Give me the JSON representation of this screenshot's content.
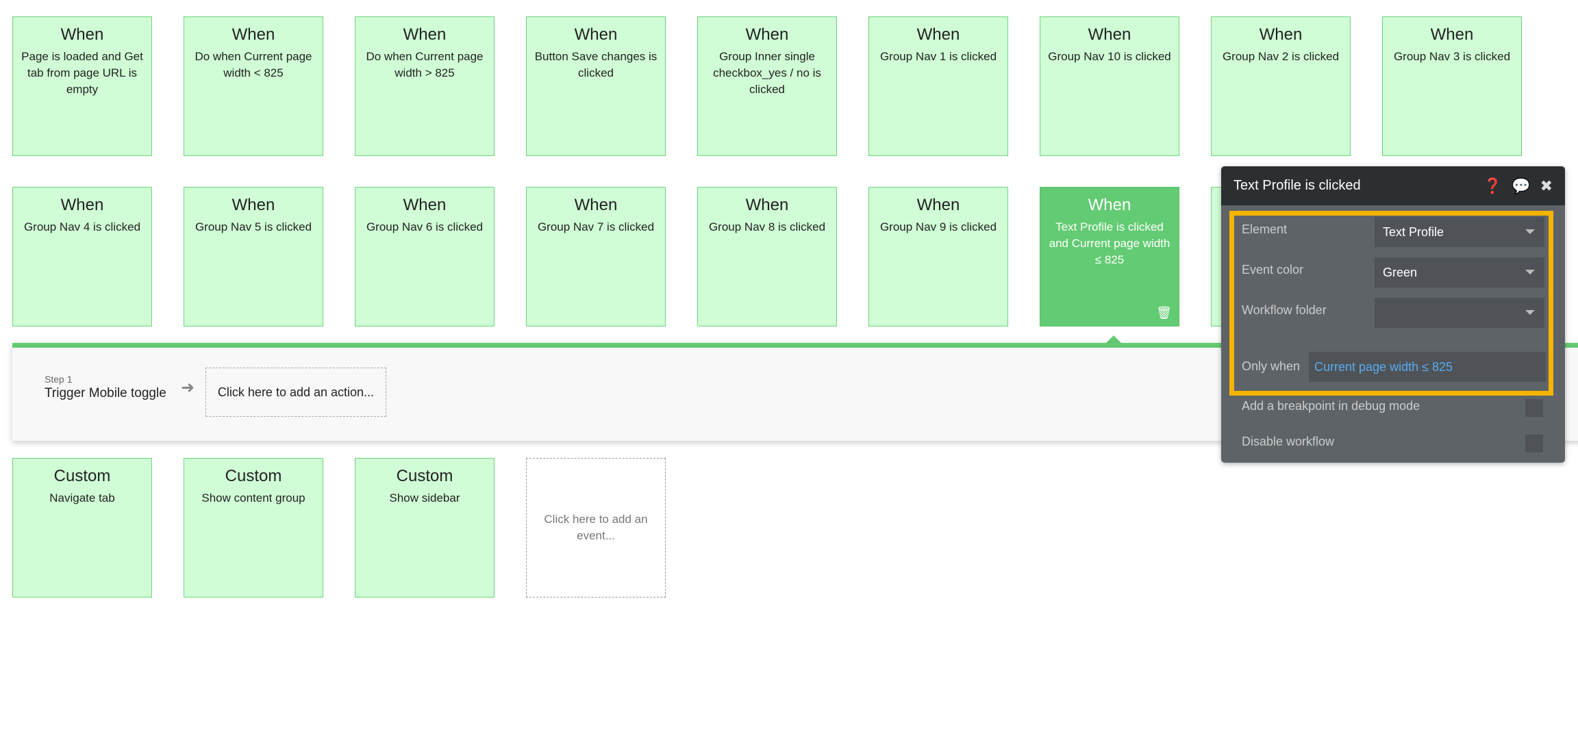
{
  "events_row1": [
    {
      "header": "When",
      "text": "Page is loaded and Get tab from page URL is empty"
    },
    {
      "header": "When",
      "text": "Do when Current page width < 825"
    },
    {
      "header": "When",
      "text": "Do when Current page width > 825"
    },
    {
      "header": "When",
      "text": "Button Save changes is clicked"
    },
    {
      "header": "When",
      "text": "Group Inner single checkbox_yes / no is clicked"
    },
    {
      "header": "When",
      "text": "Group Nav 1 is clicked"
    },
    {
      "header": "When",
      "text": "Group Nav 10 is clicked"
    },
    {
      "header": "When",
      "text": "Group Nav 2 is clicked"
    },
    {
      "header": "When",
      "text": "Group Nav 3 is clicked"
    }
  ],
  "events_row2": [
    {
      "header": "When",
      "text": "Group Nav 4 is clicked"
    },
    {
      "header": "When",
      "text": "Group Nav 5 is clicked"
    },
    {
      "header": "When",
      "text": "Group Nav 6 is clicked"
    },
    {
      "header": "When",
      "text": "Group Nav 7 is clicked"
    },
    {
      "header": "When",
      "text": "Group Nav 8 is clicked"
    },
    {
      "header": "When",
      "text": "Group Nav 9 is clicked"
    },
    {
      "header": "When",
      "text": "Text Profile is clicked and Current page width ≤ 825"
    }
  ],
  "custom_events": [
    {
      "header": "Custom",
      "text": "Navigate tab"
    },
    {
      "header": "Custom",
      "text": "Show content group"
    },
    {
      "header": "Custom",
      "text": "Show sidebar"
    }
  ],
  "add_event": "Click here to add an event...",
  "workflow": {
    "step_label": "Step 1",
    "step_action": "Trigger Mobile toggle",
    "add_action": "Click here to add an action..."
  },
  "panel": {
    "title": "Text Profile is clicked",
    "element_label": "Element",
    "element_value": "Text Profile",
    "color_label": "Event color",
    "color_value": "Green",
    "folder_label": "Workflow folder",
    "folder_value": "",
    "only_when_label": "Only when",
    "only_when_value": "Current page width ≤ 825",
    "breakpoint_label": "Add a breakpoint in debug mode",
    "disable_label": "Disable workflow"
  },
  "colors": {
    "event_bg": "#d0fdd6",
    "selected_event": "#63cb73",
    "highlight": "#f5b400",
    "condition_text": "#5aaaf0"
  }
}
